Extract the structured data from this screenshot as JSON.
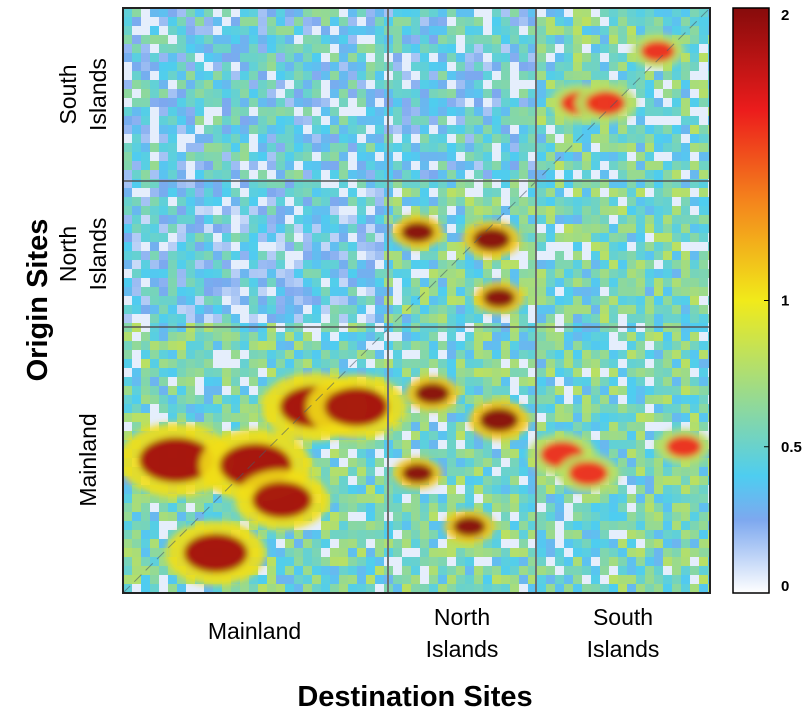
{
  "chart_data": {
    "type": "heatmap",
    "xlabel": "Destination Sites",
    "ylabel": "Origin Sites",
    "x_groups": [
      {
        "name": "Mainland",
        "lines": [
          "Mainland"
        ]
      },
      {
        "name": "North Islands",
        "lines": [
          "North",
          "Islands"
        ]
      },
      {
        "name": "South Islands",
        "lines": [
          "South",
          "Islands"
        ]
      }
    ],
    "y_groups": [
      {
        "name": "South Islands",
        "lines": [
          "South",
          "Islands"
        ]
      },
      {
        "name": "North Islands",
        "lines": [
          "North",
          "Islands"
        ]
      },
      {
        "name": "Mainland",
        "lines": [
          "Mainland"
        ]
      }
    ],
    "colorbar": {
      "range": [
        0,
        2
      ],
      "ticks": [
        {
          "value": 0,
          "label": "0"
        },
        {
          "value": 0.5,
          "label": "0.5"
        },
        {
          "value": 1,
          "label": "1"
        },
        {
          "value": 2,
          "label": "2"
        }
      ],
      "colors": [
        "#ffffff",
        "#7da8ef",
        "#4ecdf0",
        "#f1ea1a",
        "#f4811c",
        "#ec1c1c",
        "#860b0b"
      ]
    },
    "blocks": [
      {
        "origin": "South Islands",
        "destination": "Mainland",
        "level": 0.42
      },
      {
        "origin": "South Islands",
        "destination": "North Islands",
        "level": 0.4
      },
      {
        "origin": "South Islands",
        "destination": "South Islands",
        "level": 1.0
      },
      {
        "origin": "North Islands",
        "destination": "Mainland",
        "level": 0.35
      },
      {
        "origin": "North Islands",
        "destination": "North Islands",
        "level": 1.4
      },
      {
        "origin": "North Islands",
        "destination": "South Islands",
        "level": 0.6
      },
      {
        "origin": "Mainland",
        "destination": "Mainland",
        "level": 1.3
      },
      {
        "origin": "Mainland",
        "destination": "North Islands",
        "level": 1.4
      },
      {
        "origin": "Mainland",
        "destination": "South Islands",
        "level": 1.0
      }
    ]
  }
}
